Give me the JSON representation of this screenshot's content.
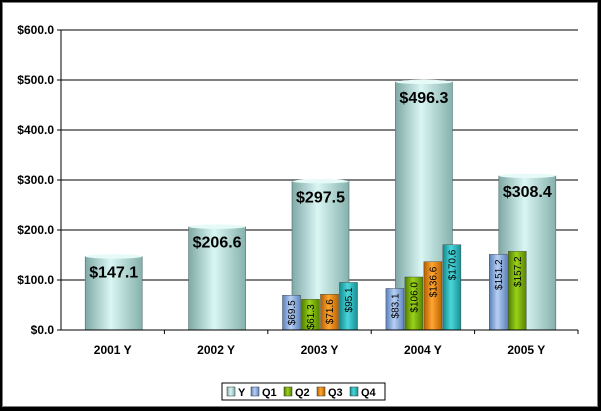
{
  "chart_data": {
    "type": "bar",
    "title": "",
    "xlabel": "",
    "ylabel": "",
    "ylim": [
      0,
      600
    ],
    "yticks": [
      "$0.0",
      "$100.0",
      "$200.0",
      "$300.0",
      "$400.0",
      "$500.0",
      "$600.0"
    ],
    "grid": true,
    "legend_position": "bottom",
    "categories": [
      "2001 Y",
      "2002 Y",
      "2003 Y",
      "2004 Y",
      "2005 Y"
    ],
    "annual": {
      "name": "Y",
      "color": "#c8f0ec",
      "values": [
        147.1,
        206.6,
        297.5,
        496.3,
        308.4
      ],
      "labels": [
        "$147.1",
        "$206.6",
        "$297.5",
        "$496.3",
        "$308.4"
      ]
    },
    "series": [
      {
        "name": "Q1",
        "color": "#8fb4e6",
        "values": [
          null,
          null,
          69.5,
          83.1,
          151.2
        ],
        "labels": [
          null,
          null,
          "$69.5",
          "$83.1",
          "$151.2"
        ]
      },
      {
        "name": "Q2",
        "color": "#7ab800",
        "values": [
          null,
          null,
          61.3,
          106.0,
          157.2
        ],
        "labels": [
          null,
          null,
          "$61.3",
          "$106.0",
          "$157.2"
        ]
      },
      {
        "name": "Q3",
        "color": "#f28a00",
        "values": [
          null,
          null,
          71.6,
          136.6,
          null
        ],
        "labels": [
          null,
          null,
          "$71.6",
          "$136.6",
          null
        ]
      },
      {
        "name": "Q4",
        "color": "#2fbcc0",
        "values": [
          null,
          null,
          95.1,
          170.6,
          null
        ],
        "labels": [
          null,
          null,
          "$95.1",
          "$170.6",
          null
        ]
      }
    ],
    "legend": [
      "Y",
      "Q1",
      "Q2",
      "Q3",
      "Q4"
    ]
  }
}
